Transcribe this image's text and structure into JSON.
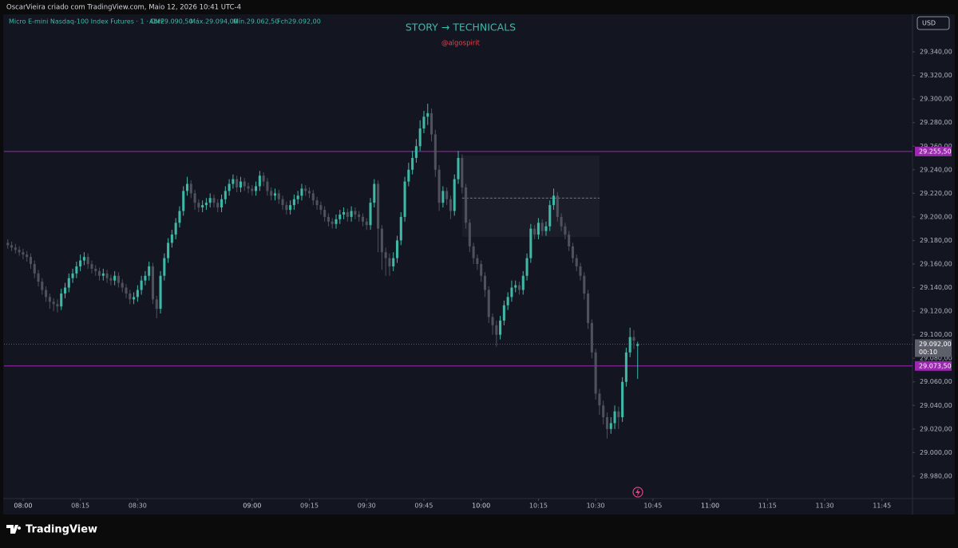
{
  "header": "OscarVieira criado com TradingView.com, Maio 12, 2026 10:41 UTC-4",
  "footer": {
    "brand": "TradingView"
  },
  "chart_data": {
    "type": "candlestick",
    "title": "STORY → TECHNICALS",
    "subtitle": "@algospirit",
    "symbol": "Micro E-mini Nasdaq-100 Index Futures · 1 · CME",
    "legend_values": [
      "Abr29.090,50",
      "Máx.29.094,00",
      "Mín.29.062,50",
      "Fch29.092,00"
    ],
    "currency": "USD",
    "countdown": "00:10",
    "up_color": "#3fb8a8",
    "down_color": "#4f525d",
    "xlim": [
      "07:55",
      "11:53"
    ],
    "ylim": [
      28961,
      29370.5
    ],
    "xticks": [
      "08:00",
      "08:15",
      "08:30",
      "09:00",
      "09:15",
      "09:30",
      "09:45",
      "10:00",
      "10:15",
      "10:30",
      "10:45",
      "11:00",
      "11:15",
      "11:30",
      "11:45"
    ],
    "yticks": [
      {
        "value": 28980,
        "label": "28.980,00"
      },
      {
        "value": 29000,
        "label": "29.000,00"
      },
      {
        "value": 29020,
        "label": "29.020,00"
      },
      {
        "value": 29040,
        "label": "29.040,00"
      },
      {
        "value": 29060,
        "label": "29.060,00"
      },
      {
        "value": 29080,
        "label": "29.080,00"
      },
      {
        "value": 29100,
        "label": "29.100,00"
      },
      {
        "value": 29120,
        "label": "29.120,00"
      },
      {
        "value": 29140,
        "label": "29.140,00"
      },
      {
        "value": 29160,
        "label": "29.160,00"
      },
      {
        "value": 29180,
        "label": "29.180,00"
      },
      {
        "value": 29200,
        "label": "29.200,00"
      },
      {
        "value": 29220,
        "label": "29.220,00"
      },
      {
        "value": 29240,
        "label": "29.240,00"
      },
      {
        "value": 29260,
        "label": "29.260,00"
      },
      {
        "value": 29280,
        "label": "29.280,00"
      },
      {
        "value": 29300,
        "label": "29.300,00"
      },
      {
        "value": 29320,
        "label": "29.320,00"
      },
      {
        "value": 29340,
        "label": "29.340,00"
      }
    ],
    "hlines": [
      {
        "value": 29255.5,
        "label": "29.255,50",
        "color": "#9c27b0"
      },
      {
        "value": 29073.5,
        "label": "29.073,50",
        "color": "#9c27b0"
      }
    ],
    "last_price": {
      "value": 29092,
      "label": "29.092,00"
    },
    "zone": {
      "start": "09:55",
      "end": "10:31",
      "top": 29252,
      "bottom": 29183,
      "level": 29216
    },
    "x": [
      "07:56",
      "07:57",
      "07:58",
      "07:59",
      "08:00",
      "08:01",
      "08:02",
      "08:03",
      "08:04",
      "08:05",
      "08:06",
      "08:07",
      "08:08",
      "08:09",
      "08:10",
      "08:11",
      "08:12",
      "08:13",
      "08:14",
      "08:15",
      "08:16",
      "08:17",
      "08:18",
      "08:19",
      "08:20",
      "08:21",
      "08:22",
      "08:23",
      "08:24",
      "08:25",
      "08:26",
      "08:27",
      "08:28",
      "08:29",
      "08:30",
      "08:31",
      "08:32",
      "08:33",
      "08:34",
      "08:35",
      "08:36",
      "08:37",
      "08:38",
      "08:39",
      "08:40",
      "08:41",
      "08:42",
      "08:43",
      "08:44",
      "08:45",
      "08:46",
      "08:47",
      "08:48",
      "08:49",
      "08:50",
      "08:51",
      "08:52",
      "08:53",
      "08:54",
      "08:55",
      "08:56",
      "08:57",
      "08:58",
      "08:59",
      "09:00",
      "09:01",
      "09:02",
      "09:03",
      "09:04",
      "09:05",
      "09:06",
      "09:07",
      "09:08",
      "09:09",
      "09:10",
      "09:11",
      "09:12",
      "09:13",
      "09:14",
      "09:15",
      "09:16",
      "09:17",
      "09:18",
      "09:19",
      "09:20",
      "09:21",
      "09:22",
      "09:23",
      "09:24",
      "09:25",
      "09:26",
      "09:27",
      "09:28",
      "09:29",
      "09:30",
      "09:31",
      "09:32",
      "09:33",
      "09:34",
      "09:35",
      "09:36",
      "09:37",
      "09:38",
      "09:39",
      "09:40",
      "09:41",
      "09:42",
      "09:43",
      "09:44",
      "09:45",
      "09:46",
      "09:47",
      "09:48",
      "09:49",
      "09:50",
      "09:51",
      "09:52",
      "09:53",
      "09:54",
      "09:55",
      "09:56",
      "09:57",
      "09:58",
      "09:59",
      "10:00",
      "10:01",
      "10:02",
      "10:03",
      "10:04",
      "10:05",
      "10:06",
      "10:07",
      "10:08",
      "10:09",
      "10:10",
      "10:11",
      "10:12",
      "10:13",
      "10:14",
      "10:15",
      "10:16",
      "10:17",
      "10:18",
      "10:19",
      "10:20",
      "10:21",
      "10:22",
      "10:23",
      "10:24",
      "10:25",
      "10:26",
      "10:27",
      "10:28",
      "10:29",
      "10:30",
      "10:31",
      "10:32",
      "10:33",
      "10:34",
      "10:35",
      "10:36",
      "10:37",
      "10:38",
      "10:39",
      "10:40",
      "10:41"
    ],
    "ohlc": [
      [
        29178,
        29181,
        29173,
        29176
      ],
      [
        29176,
        29179,
        29171,
        29174
      ],
      [
        29174,
        29177,
        29169,
        29172
      ],
      [
        29172,
        29175,
        29167,
        29170
      ],
      [
        29170,
        29173,
        29164,
        29168
      ],
      [
        29168,
        29171,
        29162,
        29166
      ],
      [
        29166,
        29169,
        29156,
        29160
      ],
      [
        29160,
        29163,
        29148,
        29152
      ],
      [
        29152,
        29155,
        29141,
        29145
      ],
      [
        29145,
        29148,
        29134,
        29138
      ],
      [
        29138,
        29141,
        29128,
        29132
      ],
      [
        29132,
        29135,
        29122,
        29128
      ],
      [
        29128,
        29131,
        29120,
        29126
      ],
      [
        29126,
        29130,
        29119,
        29124
      ],
      [
        29124,
        29139,
        29121,
        29135
      ],
      [
        29135,
        29144,
        29131,
        29140
      ],
      [
        29140,
        29152,
        29136,
        29148
      ],
      [
        29148,
        29156,
        29144,
        29152
      ],
      [
        29152,
        29162,
        29148,
        29158
      ],
      [
        29158,
        29168,
        29154,
        29163
      ],
      [
        29163,
        29170,
        29159,
        29166
      ],
      [
        29166,
        29169,
        29156,
        29160
      ],
      [
        29160,
        29163,
        29152,
        29156
      ],
      [
        29156,
        29159,
        29150,
        29154
      ],
      [
        29154,
        29157,
        29146,
        29150
      ],
      [
        29150,
        29156,
        29146,
        29152
      ],
      [
        29152,
        29155,
        29144,
        29148
      ],
      [
        29148,
        29151,
        29142,
        29146
      ],
      [
        29146,
        29154,
        29142,
        29150
      ],
      [
        29150,
        29153,
        29140,
        29144
      ],
      [
        29144,
        29147,
        29136,
        29140
      ],
      [
        29140,
        29143,
        29131,
        29135
      ],
      [
        29135,
        29138,
        29126,
        29130
      ],
      [
        29130,
        29136,
        29126,
        29132
      ],
      [
        29132,
        29142,
        29128,
        29138
      ],
      [
        29138,
        29150,
        29134,
        29146
      ],
      [
        29146,
        29154,
        29142,
        29150
      ],
      [
        29150,
        29162,
        29146,
        29158
      ],
      [
        29158,
        29161,
        29126,
        29130
      ],
      [
        29130,
        29133,
        29114,
        29122
      ],
      [
        29122,
        29154,
        29118,
        29150
      ],
      [
        29150,
        29169,
        29146,
        29165
      ],
      [
        29165,
        29182,
        29161,
        29178
      ],
      [
        29178,
        29189,
        29174,
        29185
      ],
      [
        29185,
        29199,
        29181,
        29195
      ],
      [
        29195,
        29209,
        29191,
        29205
      ],
      [
        29205,
        29226,
        29201,
        29222
      ],
      [
        29222,
        29234,
        29218,
        29228
      ],
      [
        29228,
        29231,
        29216,
        29220
      ],
      [
        29220,
        29223,
        29206,
        29212
      ],
      [
        29212,
        29215,
        29204,
        29208
      ],
      [
        29208,
        29214,
        29204,
        29210
      ],
      [
        29210,
        29216,
        29206,
        29212
      ],
      [
        29212,
        29220,
        29208,
        29216
      ],
      [
        29216,
        29219,
        29208,
        29212
      ],
      [
        29212,
        29215,
        29204,
        29208
      ],
      [
        29208,
        29219,
        29204,
        29215
      ],
      [
        29215,
        29226,
        29211,
        29222
      ],
      [
        29222,
        29232,
        29218,
        29228
      ],
      [
        29228,
        29236,
        29224,
        29232
      ],
      [
        29232,
        29235,
        29221,
        29225
      ],
      [
        29225,
        29234,
        29221,
        29230
      ],
      [
        29230,
        29233,
        29222,
        29226
      ],
      [
        29226,
        29229,
        29220,
        29224
      ],
      [
        29224,
        29227,
        29218,
        29222
      ],
      [
        29222,
        29230,
        29218,
        29226
      ],
      [
        29226,
        29239,
        29222,
        29235
      ],
      [
        29235,
        29238,
        29226,
        29230
      ],
      [
        29230,
        29233,
        29218,
        29222
      ],
      [
        29222,
        29225,
        29214,
        29218
      ],
      [
        29218,
        29224,
        29214,
        29220
      ],
      [
        29220,
        29223,
        29211,
        29215
      ],
      [
        29215,
        29218,
        29206,
        29210
      ],
      [
        29210,
        29213,
        29202,
        29206
      ],
      [
        29206,
        29214,
        29202,
        29210
      ],
      [
        29210,
        29219,
        29206,
        29215
      ],
      [
        29215,
        29222,
        29211,
        29218
      ],
      [
        29218,
        29228,
        29214,
        29224
      ],
      [
        29224,
        29227,
        29218,
        29222
      ],
      [
        29222,
        29225,
        29216,
        29220
      ],
      [
        29220,
        29223,
        29210,
        29214
      ],
      [
        29214,
        29217,
        29206,
        29210
      ],
      [
        29210,
        29213,
        29202,
        29206
      ],
      [
        29206,
        29209,
        29196,
        29200
      ],
      [
        29200,
        29203,
        29192,
        29196
      ],
      [
        29196,
        29199,
        29190,
        29194
      ],
      [
        29194,
        29202,
        29190,
        29198
      ],
      [
        29198,
        29206,
        29194,
        29202
      ],
      [
        29202,
        29208,
        29198,
        29204
      ],
      [
        29204,
        29207,
        29196,
        29200
      ],
      [
        29200,
        29209,
        29196,
        29205
      ],
      [
        29205,
        29208,
        29198,
        29202
      ],
      [
        29202,
        29205,
        29196,
        29200
      ],
      [
        29200,
        29203,
        29192,
        29196
      ],
      [
        29196,
        29199,
        29189,
        29193
      ],
      [
        29193,
        29216,
        29189,
        29212
      ],
      [
        29212,
        29232,
        29208,
        29228
      ],
      [
        29228,
        29231,
        29170,
        29190
      ],
      [
        29190,
        29193,
        29155,
        29170
      ],
      [
        29170,
        29174,
        29150,
        29165
      ],
      [
        29165,
        29169,
        29150,
        29158
      ],
      [
        29158,
        29170,
        29154,
        29165
      ],
      [
        29165,
        29184,
        29161,
        29180
      ],
      [
        29180,
        29204,
        29176,
        29200
      ],
      [
        29200,
        29234,
        29196,
        29230
      ],
      [
        29230,
        29246,
        29226,
        29240
      ],
      [
        29240,
        29256,
        29236,
        29250
      ],
      [
        29250,
        29266,
        29246,
        29260
      ],
      [
        29260,
        29282,
        29256,
        29275
      ],
      [
        29275,
        29290,
        29271,
        29285
      ],
      [
        29285,
        29296,
        29278,
        29288
      ],
      [
        29288,
        29292,
        29264,
        29270
      ],
      [
        29270,
        29274,
        29234,
        29240
      ],
      [
        29240,
        29244,
        29205,
        29212
      ],
      [
        29212,
        29226,
        29208,
        29222
      ],
      [
        29222,
        29225,
        29210,
        29215
      ],
      [
        29215,
        29218,
        29198,
        29205
      ],
      [
        29205,
        29236,
        29201,
        29232
      ],
      [
        29232,
        29256,
        29228,
        29250
      ],
      [
        29250,
        29253,
        29220,
        29225
      ],
      [
        29225,
        29228,
        29190,
        29195
      ],
      [
        29195,
        29198,
        29170,
        29175
      ],
      [
        29175,
        29178,
        29160,
        29165
      ],
      [
        29165,
        29168,
        29155,
        29160
      ],
      [
        29160,
        29163,
        29145,
        29150
      ],
      [
        29150,
        29153,
        29132,
        29138
      ],
      [
        29138,
        29141,
        29110,
        29115
      ],
      [
        29115,
        29118,
        29100,
        29108
      ],
      [
        29108,
        29112,
        29090,
        29100
      ],
      [
        29100,
        29116,
        29096,
        29112
      ],
      [
        29112,
        29129,
        29108,
        29125
      ],
      [
        29125,
        29136,
        29121,
        29132
      ],
      [
        29132,
        29146,
        29128,
        29140
      ],
      [
        29140,
        29146,
        29136,
        29142
      ],
      [
        29142,
        29145,
        29134,
        29138
      ],
      [
        29138,
        29154,
        29134,
        29150
      ],
      [
        29150,
        29169,
        29146,
        29165
      ],
      [
        29165,
        29194,
        29161,
        29190
      ],
      [
        29190,
        29193,
        29181,
        29185
      ],
      [
        29185,
        29199,
        29181,
        29195
      ],
      [
        29195,
        29198,
        29184,
        29188
      ],
      [
        29188,
        29196,
        29184,
        29192
      ],
      [
        29192,
        29214,
        29188,
        29210
      ],
      [
        29210,
        29224,
        29206,
        29218
      ],
      [
        29218,
        29221,
        29196,
        29200
      ],
      [
        29200,
        29203,
        29188,
        29192
      ],
      [
        29192,
        29195,
        29181,
        29185
      ],
      [
        29185,
        29188,
        29171,
        29175
      ],
      [
        29175,
        29178,
        29161,
        29165
      ],
      [
        29165,
        29168,
        29154,
        29158
      ],
      [
        29158,
        29161,
        29146,
        29150
      ],
      [
        29150,
        29153,
        29130,
        29135
      ],
      [
        29135,
        29138,
        29105,
        29110
      ],
      [
        29110,
        29113,
        29080,
        29085
      ],
      [
        29085,
        29088,
        29045,
        29050
      ],
      [
        29050,
        29054,
        29032,
        29040
      ],
      [
        29040,
        29044,
        29024,
        29030
      ],
      [
        29030,
        29034,
        29012,
        29020
      ],
      [
        29020,
        29030,
        29016,
        29025
      ],
      [
        29025,
        29040,
        29020,
        29035
      ],
      [
        29035,
        29039,
        29020,
        29030
      ],
      [
        29030,
        29064,
        29026,
        29060
      ],
      [
        29060,
        29089,
        29056,
        29085
      ],
      [
        29085,
        29106,
        29081,
        29098
      ],
      [
        29098,
        29104,
        29088,
        29095
      ],
      [
        29090.5,
        29094,
        29062.5,
        29092
      ]
    ]
  }
}
